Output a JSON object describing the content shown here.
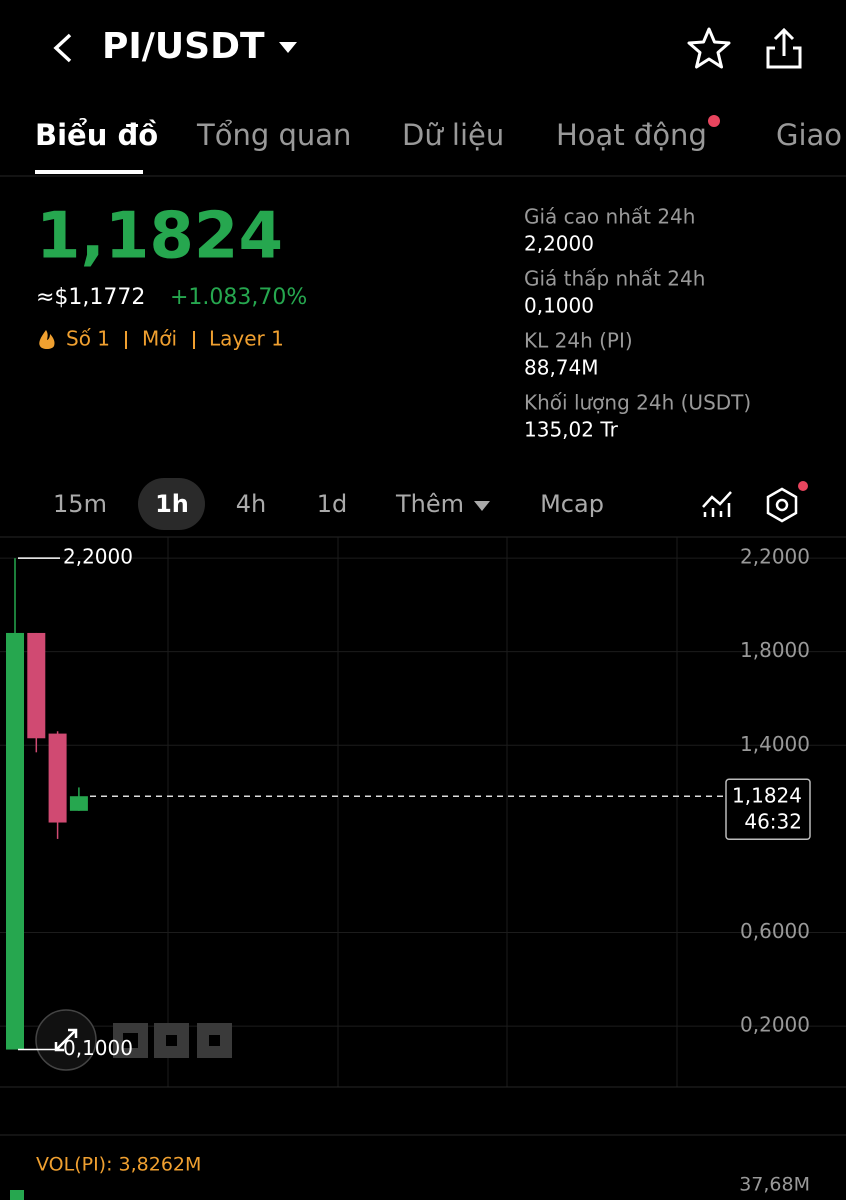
{
  "header": {
    "pair": "PI/USDT"
  },
  "tabs": [
    "Biểu đồ",
    "Tổng quan",
    "Dữ liệu",
    "Hoạt động",
    "Giao"
  ],
  "price": {
    "last": "1,1824",
    "usd": "≈$1,1772",
    "change": "+1.083,70%",
    "tags": [
      "Số 1",
      "Mới",
      "Layer 1"
    ]
  },
  "stats": [
    {
      "label": "Giá cao nhất 24h",
      "value": "2,2000"
    },
    {
      "label": "Giá thấp nhất 24h",
      "value": "0,1000"
    },
    {
      "label": "KL 24h (PI)",
      "value": "88,74M"
    },
    {
      "label": "Khối lượng 24h (USDT)",
      "value": "135,02 Tr"
    }
  ],
  "intervals": [
    "15m",
    "1h",
    "4h",
    "1d",
    "Thêm",
    "Mcap"
  ],
  "chart": {
    "type": "candlestick",
    "ylim": [
      -0.06,
      2.29
    ],
    "yticks": [
      {
        "value": 2.2,
        "label": "2,2000"
      },
      {
        "value": 1.8,
        "label": "1,8000"
      },
      {
        "value": 1.4,
        "label": "1,4000"
      },
      {
        "value": 0.6,
        "label": "0,6000"
      },
      {
        "value": 0.2,
        "label": "0,2000"
      }
    ],
    "up_color": "#26a74f",
    "down_color": "#d04a72",
    "candles": [
      {
        "open": 0.1,
        "high": 2.2,
        "low": 0.1,
        "close": 1.88
      },
      {
        "open": 1.88,
        "high": 1.88,
        "low": 1.37,
        "close": 1.43
      },
      {
        "open": 1.45,
        "high": 1.46,
        "low": 1.0,
        "close": 1.07
      },
      {
        "open": 1.12,
        "high": 1.22,
        "low": 1.12,
        "close": 1.1824
      }
    ],
    "high_label": {
      "value": 2.2,
      "label": "2,2000"
    },
    "low_label": {
      "value": 0.1,
      "label": "0,1000"
    },
    "last_label": {
      "value": 1.1824,
      "label": "1,1824"
    },
    "countdown": "46:32"
  },
  "volume": {
    "label": "VOL(PI): 3,8262M",
    "axis_label": "37,68M"
  }
}
